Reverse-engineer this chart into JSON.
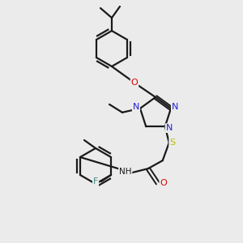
{
  "background_color": "#ebebeb",
  "bond_color": "#1a1a1a",
  "atom_colors": {
    "N": "#2222cc",
    "O": "#dd0000",
    "S": "#bbbb00",
    "F": "#448888",
    "H": "#1a1a1a",
    "C": "#1a1a1a"
  },
  "figsize": [
    3.0,
    3.0
  ],
  "dpi": 100
}
